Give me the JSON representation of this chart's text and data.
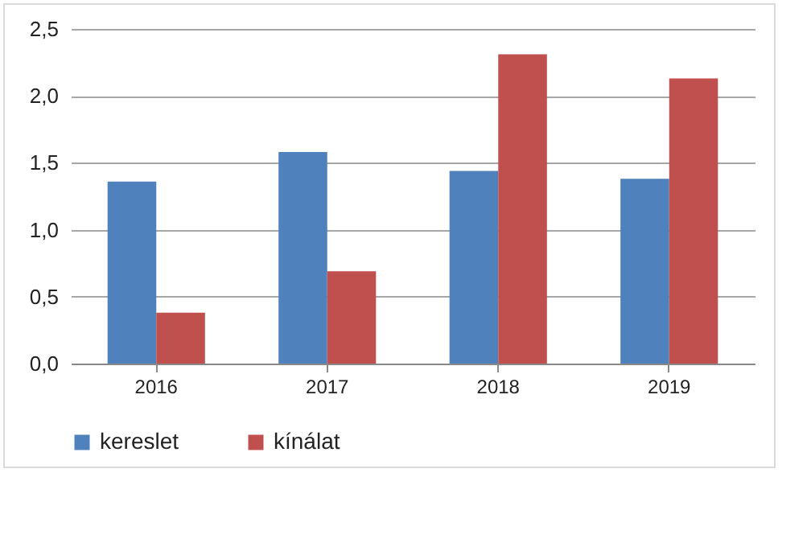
{
  "chart_data": {
    "type": "bar",
    "categories": [
      "2016",
      "2017",
      "2018",
      "2019"
    ],
    "series": [
      {
        "name": "kereslet",
        "color": "#4f81bd",
        "values": [
          1.36,
          1.58,
          1.44,
          1.38
        ]
      },
      {
        "name": "kínálat",
        "color": "#c0504d",
        "values": [
          0.38,
          0.69,
          2.31,
          2.13
        ]
      }
    ],
    "ylim": [
      0,
      2.5
    ],
    "yticks": [
      {
        "value": 0,
        "label": "0,0"
      },
      {
        "value": 0.5,
        "label": "0,5"
      },
      {
        "value": 1,
        "label": "1,0"
      },
      {
        "value": 1.5,
        "label": "1,5"
      },
      {
        "value": 2,
        "label": "2,0"
      },
      {
        "value": 2.5,
        "label": "2,5"
      }
    ],
    "grid": "y",
    "legend": "bottom"
  }
}
